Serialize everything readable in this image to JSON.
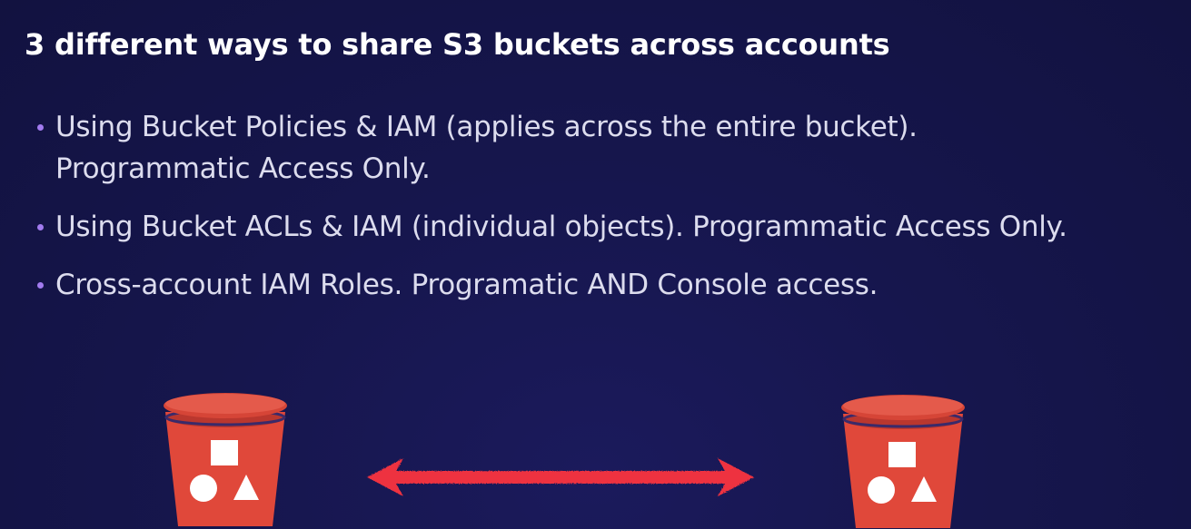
{
  "slide": {
    "title": "3 different ways to share S3 buckets across accounts",
    "bullets": [
      {
        "line1": "Using Bucket Policies & IAM (applies across the entire bucket).",
        "line2": "Programmatic Access Only."
      },
      {
        "line1": "Using Bucket ACLs & IAM (individual objects). Programmatic Access Only."
      },
      {
        "line1": "Cross-account IAM Roles. Programatic AND Console access."
      }
    ]
  },
  "colors": {
    "background": "#16164d",
    "bullet_dot": "#a27bef",
    "bucket_red": "#e0483a",
    "bucket_dark": "#b8322a",
    "arrow_red": "#ee3340"
  },
  "icons": [
    "s3-bucket-icon",
    "s3-bucket-icon",
    "double-headed-arrow-icon"
  ]
}
